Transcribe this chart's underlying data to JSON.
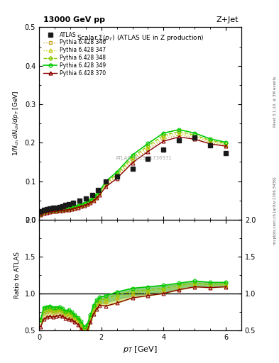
{
  "title_top_left": "13000 GeV pp",
  "title_top_right": "Z+Jet",
  "plot_title": "Scalar Σ(p_T) (ATLAS UE in Z production)",
  "xlabel": "p_T [GeV]",
  "ylabel_main": "1/N_{ch} dN_{ch}/dp_T [GeV]",
  "ylabel_ratio": "Ratio to ATLAS",
  "watermark": "ATLAS_2019_I1736531",
  "right_label": "mcplots.cern.ch [arXiv:1306.3436]",
  "right_label2": "Rivet 3.1.10, ≥ 3M events",
  "atlas_x": [
    0.05,
    0.15,
    0.25,
    0.35,
    0.45,
    0.55,
    0.65,
    0.75,
    0.85,
    0.95,
    1.1,
    1.3,
    1.5,
    1.7,
    1.9,
    2.15,
    2.5,
    3.0,
    3.5,
    4.0,
    4.5,
    5.0,
    5.5,
    6.0
  ],
  "atlas_y": [
    0.022,
    0.026,
    0.028,
    0.029,
    0.031,
    0.032,
    0.033,
    0.035,
    0.038,
    0.04,
    0.044,
    0.049,
    0.055,
    0.065,
    0.078,
    0.1,
    0.113,
    0.133,
    0.158,
    0.183,
    0.206,
    0.213,
    0.193,
    0.172
  ],
  "pythia_x": [
    0.05,
    0.15,
    0.25,
    0.35,
    0.45,
    0.55,
    0.65,
    0.75,
    0.85,
    0.95,
    1.05,
    1.15,
    1.25,
    1.35,
    1.45,
    1.55,
    1.65,
    1.75,
    1.85,
    1.95,
    2.15,
    2.5,
    3.0,
    3.5,
    4.0,
    4.5,
    5.0,
    5.5,
    6.0
  ],
  "p346_y": [
    0.014,
    0.019,
    0.021,
    0.022,
    0.023,
    0.024,
    0.025,
    0.026,
    0.027,
    0.028,
    0.03,
    0.032,
    0.034,
    0.036,
    0.039,
    0.042,
    0.046,
    0.051,
    0.058,
    0.068,
    0.09,
    0.112,
    0.153,
    0.182,
    0.21,
    0.22,
    0.213,
    0.2,
    0.192
  ],
  "p347_y": [
    0.014,
    0.02,
    0.022,
    0.023,
    0.024,
    0.025,
    0.026,
    0.027,
    0.028,
    0.029,
    0.031,
    0.033,
    0.035,
    0.037,
    0.04,
    0.043,
    0.047,
    0.053,
    0.06,
    0.07,
    0.093,
    0.115,
    0.158,
    0.187,
    0.215,
    0.225,
    0.217,
    0.203,
    0.195
  ],
  "p348_y": [
    0.014,
    0.02,
    0.022,
    0.023,
    0.024,
    0.025,
    0.026,
    0.027,
    0.028,
    0.03,
    0.032,
    0.034,
    0.036,
    0.038,
    0.041,
    0.044,
    0.049,
    0.055,
    0.062,
    0.072,
    0.096,
    0.119,
    0.162,
    0.192,
    0.219,
    0.229,
    0.22,
    0.206,
    0.198
  ],
  "p349_y": [
    0.014,
    0.021,
    0.023,
    0.024,
    0.025,
    0.026,
    0.027,
    0.028,
    0.029,
    0.031,
    0.033,
    0.035,
    0.037,
    0.04,
    0.043,
    0.046,
    0.051,
    0.057,
    0.065,
    0.075,
    0.1,
    0.124,
    0.168,
    0.198,
    0.225,
    0.234,
    0.225,
    0.21,
    0.201
  ],
  "p370_y": [
    0.012,
    0.017,
    0.019,
    0.02,
    0.021,
    0.022,
    0.023,
    0.024,
    0.025,
    0.026,
    0.028,
    0.03,
    0.032,
    0.034,
    0.037,
    0.04,
    0.044,
    0.049,
    0.056,
    0.065,
    0.086,
    0.107,
    0.148,
    0.177,
    0.204,
    0.215,
    0.209,
    0.197,
    0.191
  ],
  "color_346": "#c8a832",
  "color_347": "#c8c800",
  "color_348": "#88c800",
  "color_349": "#00c800",
  "color_370": "#8b0000",
  "color_atlas": "#1a1a1a",
  "band_inner_color": "#80cc80",
  "band_outer_color": "#d8e880",
  "ylim_main": [
    0.0,
    0.5
  ],
  "ylim_ratio": [
    0.5,
    2.0
  ],
  "xlim": [
    0.0,
    6.5
  ],
  "ratio_346": [
    0.64,
    0.73,
    0.75,
    0.76,
    0.74,
    0.75,
    0.76,
    0.74,
    0.71,
    0.7,
    0.68,
    0.65,
    0.62,
    0.55,
    0.5,
    0.53,
    0.64,
    0.75,
    0.82,
    0.86,
    0.88,
    0.92,
    0.97,
    1.0,
    1.02,
    1.06,
    1.1,
    1.08,
    1.1
  ],
  "ratio_347": [
    0.64,
    0.77,
    0.79,
    0.79,
    0.77,
    0.78,
    0.79,
    0.77,
    0.74,
    0.73,
    0.71,
    0.67,
    0.64,
    0.57,
    0.51,
    0.54,
    0.66,
    0.77,
    0.84,
    0.88,
    0.9,
    0.95,
    1.0,
    1.03,
    1.05,
    1.09,
    1.13,
    1.11,
    1.12
  ],
  "ratio_348": [
    0.64,
    0.77,
    0.79,
    0.79,
    0.77,
    0.78,
    0.79,
    0.77,
    0.74,
    0.75,
    0.73,
    0.69,
    0.65,
    0.59,
    0.53,
    0.55,
    0.68,
    0.8,
    0.87,
    0.91,
    0.93,
    0.98,
    1.03,
    1.05,
    1.07,
    1.11,
    1.14,
    1.12,
    1.13
  ],
  "ratio_349": [
    0.64,
    0.81,
    0.82,
    0.83,
    0.81,
    0.81,
    0.82,
    0.8,
    0.76,
    0.78,
    0.75,
    0.71,
    0.67,
    0.62,
    0.55,
    0.58,
    0.71,
    0.84,
    0.91,
    0.95,
    0.97,
    1.02,
    1.07,
    1.09,
    1.11,
    1.14,
    1.17,
    1.15,
    1.15
  ],
  "ratio_370": [
    0.55,
    0.65,
    0.68,
    0.69,
    0.68,
    0.69,
    0.7,
    0.69,
    0.66,
    0.65,
    0.64,
    0.61,
    0.58,
    0.52,
    0.47,
    0.5,
    0.61,
    0.72,
    0.79,
    0.84,
    0.83,
    0.87,
    0.94,
    0.97,
    1.0,
    1.05,
    1.09,
    1.08,
    1.09
  ]
}
